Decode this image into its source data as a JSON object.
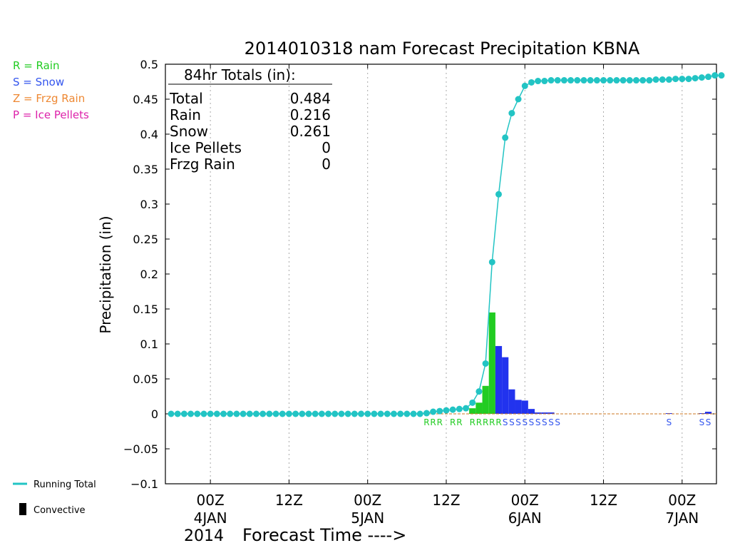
{
  "chart_data": {
    "type": "bar",
    "title": "2014010318 nam Forecast Precipitation KBNA",
    "ylabel": "Precipitation (in)",
    "xlabel": "Forecast Time ---->",
    "year_label": "2014",
    "ylim": [
      -0.1,
      0.5
    ],
    "y_ticks": [
      "0.5",
      "0.45",
      "0.4",
      "0.35",
      "0.3",
      "0.25",
      "0.2",
      "0.15",
      "0.1",
      "0.05",
      "0",
      "-0.05",
      "-0.1"
    ],
    "x_ticks": [
      {
        "hour": 6,
        "top": "00Z",
        "bottom": "4JAN"
      },
      {
        "hour": 18,
        "top": "12Z",
        "bottom": ""
      },
      {
        "hour": 30,
        "top": "00Z",
        "bottom": "5JAN"
      },
      {
        "hour": 42,
        "top": "12Z",
        "bottom": ""
      },
      {
        "hour": 54,
        "top": "00Z",
        "bottom": "6JAN"
      },
      {
        "hour": 66,
        "top": "12Z",
        "bottom": ""
      },
      {
        "hour": 78,
        "top": "00Z",
        "bottom": "7JAN"
      }
    ],
    "x_range_hours": [
      0,
      84
    ],
    "grid": "vertical-dotted",
    "precip_type_legend": [
      {
        "label": "R = Rain",
        "color": "#22cc22"
      },
      {
        "label": "S = Snow",
        "color": "#3355ee"
      },
      {
        "label": "Z = Frzg Rain",
        "color": "#ee8833"
      },
      {
        "label": "P = Ice Pellets",
        "color": "#dd22aa"
      }
    ],
    "series_legend": [
      {
        "label": "Running Total",
        "color": "#22c4c4"
      },
      {
        "label": "Convective",
        "color": "#000000"
      }
    ],
    "totals": {
      "heading": "84hr Totals (in):",
      "rows": [
        {
          "label": "Total",
          "value": "0.484"
        },
        {
          "label": "Rain",
          "value": "0.216"
        },
        {
          "label": "Snow",
          "value": "0.261"
        },
        {
          "label": "Ice Pellets",
          "value": "0"
        },
        {
          "label": "Frzg Rain",
          "value": "0"
        }
      ]
    },
    "precip_type_codes": [
      {
        "hour": 39,
        "code": "R"
      },
      {
        "hour": 40,
        "code": "R"
      },
      {
        "hour": 41,
        "code": "R"
      },
      {
        "hour": 43,
        "code": "R"
      },
      {
        "hour": 44,
        "code": "R"
      },
      {
        "hour": 46,
        "code": "R"
      },
      {
        "hour": 47,
        "code": "R"
      },
      {
        "hour": 48,
        "code": "R"
      },
      {
        "hour": 49,
        "code": "R"
      },
      {
        "hour": 50,
        "code": "R"
      },
      {
        "hour": 51,
        "code": "S"
      },
      {
        "hour": 52,
        "code": "S"
      },
      {
        "hour": 53,
        "code": "S"
      },
      {
        "hour": 54,
        "code": "S"
      },
      {
        "hour": 55,
        "code": "S"
      },
      {
        "hour": 56,
        "code": "S"
      },
      {
        "hour": 57,
        "code": "S"
      },
      {
        "hour": 58,
        "code": "S"
      },
      {
        "hour": 59,
        "code": "S"
      },
      {
        "hour": 76,
        "code": "S"
      },
      {
        "hour": 81,
        "code": "S"
      },
      {
        "hour": 82,
        "code": "S"
      }
    ],
    "hourly_precip": [
      {
        "hour": 46,
        "value": 0.008,
        "type": "rain"
      },
      {
        "hour": 47,
        "value": 0.016,
        "type": "rain"
      },
      {
        "hour": 48,
        "value": 0.04,
        "type": "rain"
      },
      {
        "hour": 49,
        "value": 0.145,
        "type": "rain"
      },
      {
        "hour": 50,
        "value": 0.097,
        "type": "snow"
      },
      {
        "hour": 51,
        "value": 0.081,
        "type": "snow"
      },
      {
        "hour": 52,
        "value": 0.035,
        "type": "snow"
      },
      {
        "hour": 53,
        "value": 0.02,
        "type": "snow"
      },
      {
        "hour": 54,
        "value": 0.019,
        "type": "snow"
      },
      {
        "hour": 55,
        "value": 0.007,
        "type": "snow"
      },
      {
        "hour": 56,
        "value": 0.002,
        "type": "snow"
      },
      {
        "hour": 57,
        "value": 0.002,
        "type": "snow"
      },
      {
        "hour": 58,
        "value": 0.002,
        "type": "snow"
      },
      {
        "hour": 76,
        "value": 0.001,
        "type": "snow"
      },
      {
        "hour": 81,
        "value": 0.001,
        "type": "snow"
      },
      {
        "hour": 82,
        "value": 0.003,
        "type": "snow"
      }
    ],
    "running_total": {
      "name": "Running Total",
      "hours": [
        0,
        1,
        2,
        3,
        4,
        5,
        6,
        7,
        8,
        9,
        10,
        11,
        12,
        13,
        14,
        15,
        16,
        17,
        18,
        19,
        20,
        21,
        22,
        23,
        24,
        25,
        26,
        27,
        28,
        29,
        30,
        31,
        32,
        33,
        34,
        35,
        36,
        37,
        38,
        39,
        40,
        41,
        42,
        43,
        44,
        45,
        46,
        47,
        48,
        49,
        50,
        51,
        52,
        53,
        54,
        55,
        56,
        57,
        58,
        59,
        60,
        61,
        62,
        63,
        64,
        65,
        66,
        67,
        68,
        69,
        70,
        71,
        72,
        73,
        74,
        75,
        76,
        77,
        78,
        79,
        80,
        81,
        82,
        83,
        84
      ],
      "values": [
        0,
        0,
        0,
        0,
        0,
        0,
        0,
        0,
        0,
        0,
        0,
        0,
        0,
        0,
        0,
        0,
        0,
        0,
        0,
        0,
        0,
        0,
        0,
        0,
        0,
        0,
        0,
        0,
        0,
        0,
        0,
        0,
        0,
        0,
        0,
        0,
        0,
        0,
        0,
        0.001,
        0.003,
        0.004,
        0.005,
        0.006,
        0.007,
        0.008,
        0.016,
        0.032,
        0.072,
        0.217,
        0.314,
        0.395,
        0.43,
        0.45,
        0.469,
        0.474,
        0.476,
        0.476,
        0.477,
        0.477,
        0.477,
        0.477,
        0.477,
        0.477,
        0.477,
        0.477,
        0.477,
        0.477,
        0.477,
        0.477,
        0.477,
        0.477,
        0.477,
        0.477,
        0.478,
        0.478,
        0.478,
        0.479,
        0.479,
        0.479,
        0.48,
        0.481,
        0.482,
        0.484,
        0.484
      ]
    }
  }
}
